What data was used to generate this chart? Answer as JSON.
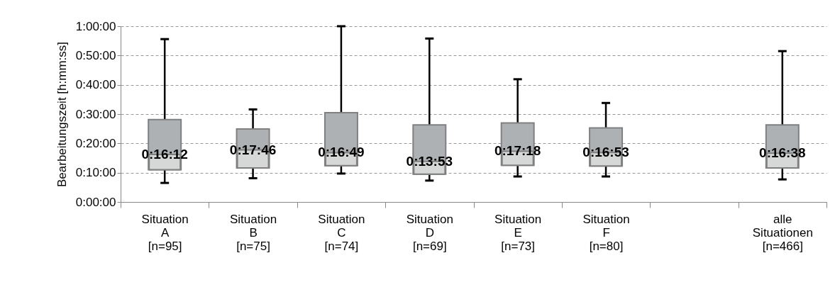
{
  "chart_data": {
    "type": "box",
    "ylabel": "Bearbeitungszeit [h:mm:ss]",
    "categories": [
      "Situation\nA\n[n=95]",
      "Situation\nB\n[n=75]",
      "Situation\nC\n[n=74]",
      "Situation\nD\n[n=69]",
      "Situation\nE\n[n=73]",
      "Situation\nF\n[n=80]",
      null,
      "alle\nSituationen\n[n=466]"
    ],
    "boxes": [
      {
        "low": 6.5,
        "q1": 11.0,
        "median": 16.2,
        "q3": 28.1,
        "high": 55.6
      },
      {
        "low": 8.1,
        "q1": 11.6,
        "median": 17.77,
        "q3": 24.9,
        "high": 31.6
      },
      {
        "low": 9.7,
        "q1": 12.4,
        "median": 16.82,
        "q3": 30.5,
        "high": 60
      },
      {
        "low": 7.3,
        "q1": 9.5,
        "median": 13.88,
        "q3": 26.3,
        "high": 55.8
      },
      {
        "low": 8.7,
        "q1": 12.5,
        "median": 17.3,
        "q3": 27.0,
        "high": 41.9
      },
      {
        "low": 8.7,
        "q1": 12.3,
        "median": 16.88,
        "q3": 25.3,
        "high": 33.8
      },
      null,
      {
        "low": 7.7,
        "q1": 11.6,
        "median": 16.63,
        "q3": 26.3,
        "high": 51.5
      }
    ],
    "color": "#adb1b4",
    "ylim": [
      0,
      60
    ],
    "yticks": [
      {
        "value": 0,
        "label": "0:00:00"
      },
      {
        "value": 10,
        "label": "0:10:00"
      },
      {
        "value": 20,
        "label": "0:20:00"
      },
      {
        "value": 30,
        "label": "0:30:00"
      },
      {
        "value": 40,
        "label": "0:40:00"
      },
      {
        "value": 50,
        "label": "0:50:00"
      },
      {
        "value": 60,
        "label": "1:00:00"
      }
    ],
    "grid": "y",
    "annotations": [
      {
        "text": "0:16:12",
        "x": "Situation\nA\n[n=95]",
        "y": 16.2
      },
      {
        "text": "0:17:46",
        "x": "Situation\nB\n[n=75]",
        "y": 17.77
      },
      {
        "text": "0:16:49",
        "x": "Situation\nC\n[n=74]",
        "y": 16.82
      },
      {
        "text": "0:13:53",
        "x": "Situation\nD\n[n=69]",
        "y": 13.88
      },
      {
        "text": "0:17:18",
        "x": "Situation\nE\n[n=73]",
        "y": 17.3
      },
      {
        "text": "0:16:53",
        "x": "Situation\nF\n[n=80]",
        "y": 16.88
      },
      {
        "text": "0:16:38",
        "x": "alle\nSituationen\n[n=466]",
        "y": 16.63
      }
    ]
  }
}
